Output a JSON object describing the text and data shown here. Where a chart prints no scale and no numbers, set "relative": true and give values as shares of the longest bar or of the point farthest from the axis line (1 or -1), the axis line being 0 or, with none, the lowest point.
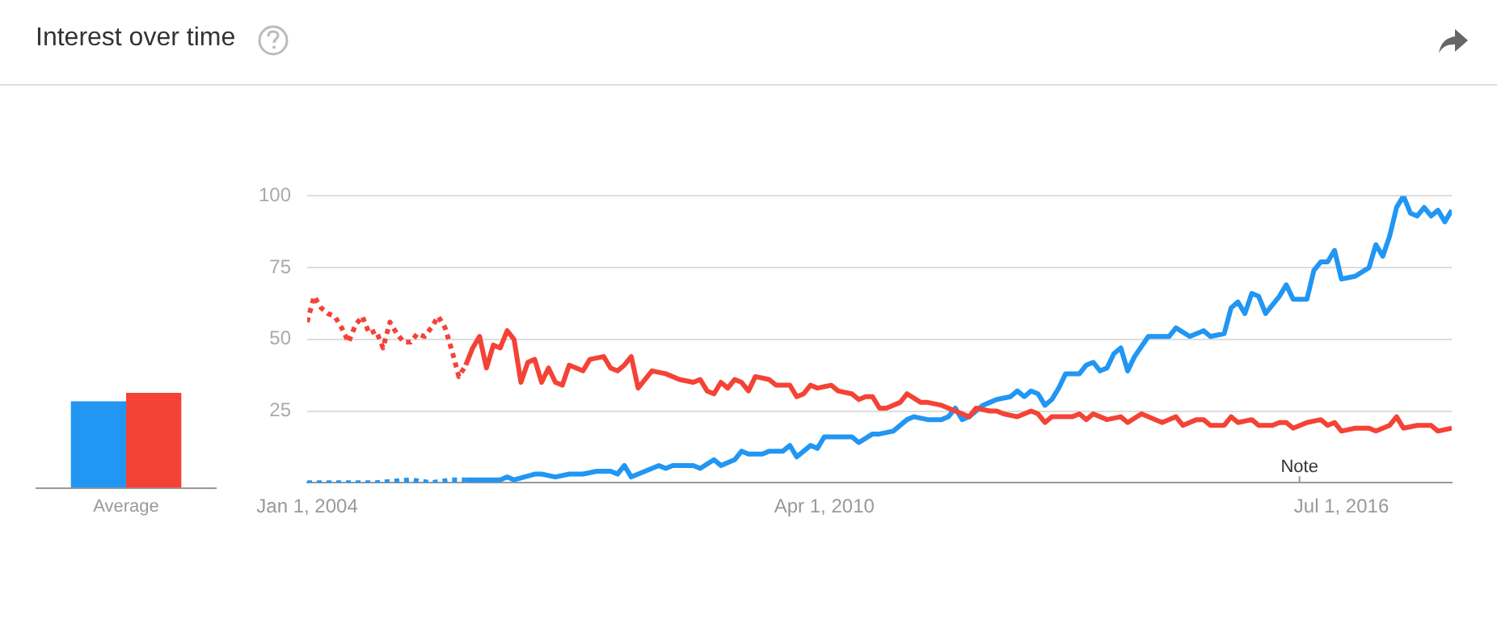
{
  "chart_data": [
    {
      "type": "bar",
      "categories": [
        "Average"
      ],
      "relative": true,
      "legend": false,
      "grid": false,
      "series": [
        {
          "color": "#2196f3",
          "values": [
            0.91
          ]
        },
        {
          "color": "#f44336",
          "values": [
            1
          ]
        }
      ]
    },
    {
      "type": "line",
      "title": "Interest over time",
      "xlim": [
        "2004-01",
        "2017-11"
      ],
      "ylim": [
        0,
        100
      ],
      "xticks": [
        {
          "value": "2004-01-01",
          "label": "Jan 1, 2004"
        },
        {
          "value": "2010-04-01",
          "label": "Apr 1, 2010"
        },
        {
          "value": "2016-07-01",
          "label": "Jul 1, 2016"
        }
      ],
      "yticks": [
        25,
        50,
        75,
        100
      ],
      "grid": "y",
      "legend": false,
      "marker": "none",
      "annotations": [
        "Note"
      ],
      "series": [
        {
          "color": "#f44336",
          "line_style": "dotted",
          "x": [
            "2004-01",
            "2004-02",
            "2004-03",
            "2004-04",
            "2004-05",
            "2004-06",
            "2004-07",
            "2004-08",
            "2004-09",
            "2004-10",
            "2004-11",
            "2004-12",
            "2005-01",
            "2005-02",
            "2005-03",
            "2005-04",
            "2005-05",
            "2005-06",
            "2005-07",
            "2005-08",
            "2005-09",
            "2005-10",
            "2005-11",
            "2005-12"
          ],
          "values": [
            56,
            65,
            61,
            59,
            58,
            54,
            49,
            55,
            58,
            52,
            53,
            47,
            56,
            52,
            49,
            49,
            52,
            51,
            54,
            58,
            54,
            46,
            37,
            41
          ]
        },
        {
          "color": "#f44336",
          "line_style": "solid",
          "x": [
            "2005-12",
            "2006-01",
            "2006-02",
            "2006-03",
            "2006-04",
            "2006-05",
            "2006-06",
            "2006-07",
            "2006-08",
            "2006-09",
            "2006-10",
            "2006-11",
            "2006-12",
            "2007-01",
            "2007-02",
            "2007-03",
            "2007-05",
            "2007-06",
            "2007-08",
            "2007-09",
            "2007-10",
            "2007-11",
            "2007-12",
            "2008-01",
            "2008-03",
            "2008-05",
            "2008-07",
            "2008-09",
            "2008-10",
            "2008-11",
            "2008-12",
            "2009-01",
            "2009-02",
            "2009-03",
            "2009-04",
            "2009-05",
            "2009-06",
            "2009-08",
            "2009-09",
            "2009-11",
            "2009-12",
            "2010-01",
            "2010-02",
            "2010-03",
            "2010-05",
            "2010-06",
            "2010-08",
            "2010-09",
            "2010-10",
            "2010-11",
            "2010-12",
            "2011-01",
            "2011-03",
            "2011-04",
            "2011-06",
            "2011-07",
            "2011-09",
            "2011-11",
            "2011-12",
            "2012-01",
            "2012-02",
            "2012-04",
            "2012-05",
            "2012-06",
            "2012-08",
            "2012-09",
            "2012-10",
            "2012-11",
            "2012-12",
            "2013-01",
            "2013-03",
            "2013-04",
            "2013-05",
            "2013-06",
            "2013-07",
            "2013-09",
            "2013-11",
            "2013-12",
            "2014-02",
            "2014-05",
            "2014-07",
            "2014-08",
            "2014-10",
            "2014-11",
            "2014-12",
            "2015-02",
            "2015-03",
            "2015-04",
            "2015-06",
            "2015-07",
            "2015-09",
            "2015-10",
            "2015-11",
            "2015-12",
            "2016-02",
            "2016-04",
            "2016-05",
            "2016-06",
            "2016-07",
            "2016-09",
            "2016-11",
            "2016-12",
            "2017-02",
            "2017-03",
            "2017-04",
            "2017-06",
            "2017-08",
            "2017-09",
            "2017-11"
          ],
          "values": [
            41,
            47,
            51,
            40,
            48,
            47,
            53,
            50,
            35,
            42,
            43,
            35,
            40,
            35,
            34,
            41,
            39,
            43,
            44,
            40,
            39,
            41,
            44,
            33,
            39,
            38,
            36,
            35,
            36,
            32,
            31,
            35,
            33,
            36,
            35,
            32,
            37,
            36,
            34,
            34,
            30,
            31,
            34,
            33,
            34,
            32,
            31,
            29,
            30,
            30,
            26,
            26,
            28,
            31,
            28,
            28,
            27,
            25,
            24,
            23,
            26,
            25,
            25,
            24,
            23,
            24,
            25,
            24,
            21,
            23,
            23,
            23,
            24,
            22,
            24,
            22,
            23,
            21,
            24,
            21,
            23,
            20,
            22,
            22,
            20,
            20,
            23,
            21,
            22,
            20,
            20,
            21,
            21,
            19,
            21,
            22,
            20,
            21,
            18,
            19,
            19,
            18,
            20,
            23,
            19,
            20,
            20,
            18,
            19
          ]
        },
        {
          "color": "#2196f3",
          "line_style": "dotted",
          "x": [
            "2004-01",
            "2004-06",
            "2004-11",
            "2005-04",
            "2005-07",
            "2005-10",
            "2005-12"
          ],
          "values": [
            0,
            0,
            0,
            1,
            0,
            1,
            1
          ]
        },
        {
          "color": "#2196f3",
          "line_style": "solid",
          "x": [
            "2005-12",
            "2006-05",
            "2006-06",
            "2006-07",
            "2006-10",
            "2006-11",
            "2007-01",
            "2007-03",
            "2007-05",
            "2007-07",
            "2007-09",
            "2007-10",
            "2007-11",
            "2007-12",
            "2008-02",
            "2008-04",
            "2008-05",
            "2008-06",
            "2008-09",
            "2008-10",
            "2008-12",
            "2009-01",
            "2009-03",
            "2009-04",
            "2009-05",
            "2009-07",
            "2009-08",
            "2009-09",
            "2009-10",
            "2009-11",
            "2009-12",
            "2010-02",
            "2010-03",
            "2010-04",
            "2010-08",
            "2010-09",
            "2010-11",
            "2010-12",
            "2011-02",
            "2011-04",
            "2011-05",
            "2011-07",
            "2011-09",
            "2011-10",
            "2011-11",
            "2011-12",
            "2012-01",
            "2012-03",
            "2012-04",
            "2012-05",
            "2012-07",
            "2012-08",
            "2012-09",
            "2012-10",
            "2012-11",
            "2012-12",
            "2013-01",
            "2013-02",
            "2013-03",
            "2013-05",
            "2013-06",
            "2013-07",
            "2013-08",
            "2013-09",
            "2013-10",
            "2013-11",
            "2013-12",
            "2014-01",
            "2014-03",
            "2014-04",
            "2014-06",
            "2014-07",
            "2014-09",
            "2014-11",
            "2014-12",
            "2015-02",
            "2015-03",
            "2015-04",
            "2015-05",
            "2015-06",
            "2015-07",
            "2015-08",
            "2015-10",
            "2015-11",
            "2015-12",
            "2016-02",
            "2016-03",
            "2016-04",
            "2016-05",
            "2016-06",
            "2016-07",
            "2016-09",
            "2016-11",
            "2016-12",
            "2017-01",
            "2017-02",
            "2017-03",
            "2017-04",
            "2017-05",
            "2017-06",
            "2017-07",
            "2017-08",
            "2017-09",
            "2017-10",
            "2017-11"
          ],
          "values": [
            1,
            1,
            2,
            1,
            3,
            3,
            2,
            3,
            3,
            4,
            4,
            3,
            6,
            2,
            4,
            6,
            5,
            6,
            6,
            5,
            8,
            6,
            8,
            11,
            10,
            10,
            11,
            11,
            11,
            13,
            9,
            13,
            12,
            16,
            16,
            14,
            17,
            17,
            18,
            22,
            23,
            22,
            22,
            23,
            26,
            22,
            23,
            27,
            28,
            29,
            30,
            32,
            30,
            32,
            31,
            27,
            29,
            33,
            38,
            38,
            41,
            42,
            39,
            40,
            45,
            47,
            39,
            44,
            51,
            51,
            51,
            54,
            51,
            53,
            51,
            52,
            61,
            63,
            59,
            66,
            65,
            59,
            65,
            69,
            64,
            64,
            74,
            77,
            77,
            81,
            71,
            72,
            75,
            83,
            79,
            86,
            96,
            100,
            94,
            93,
            96,
            93,
            95,
            91,
            95
          ]
        }
      ]
    }
  ]
}
